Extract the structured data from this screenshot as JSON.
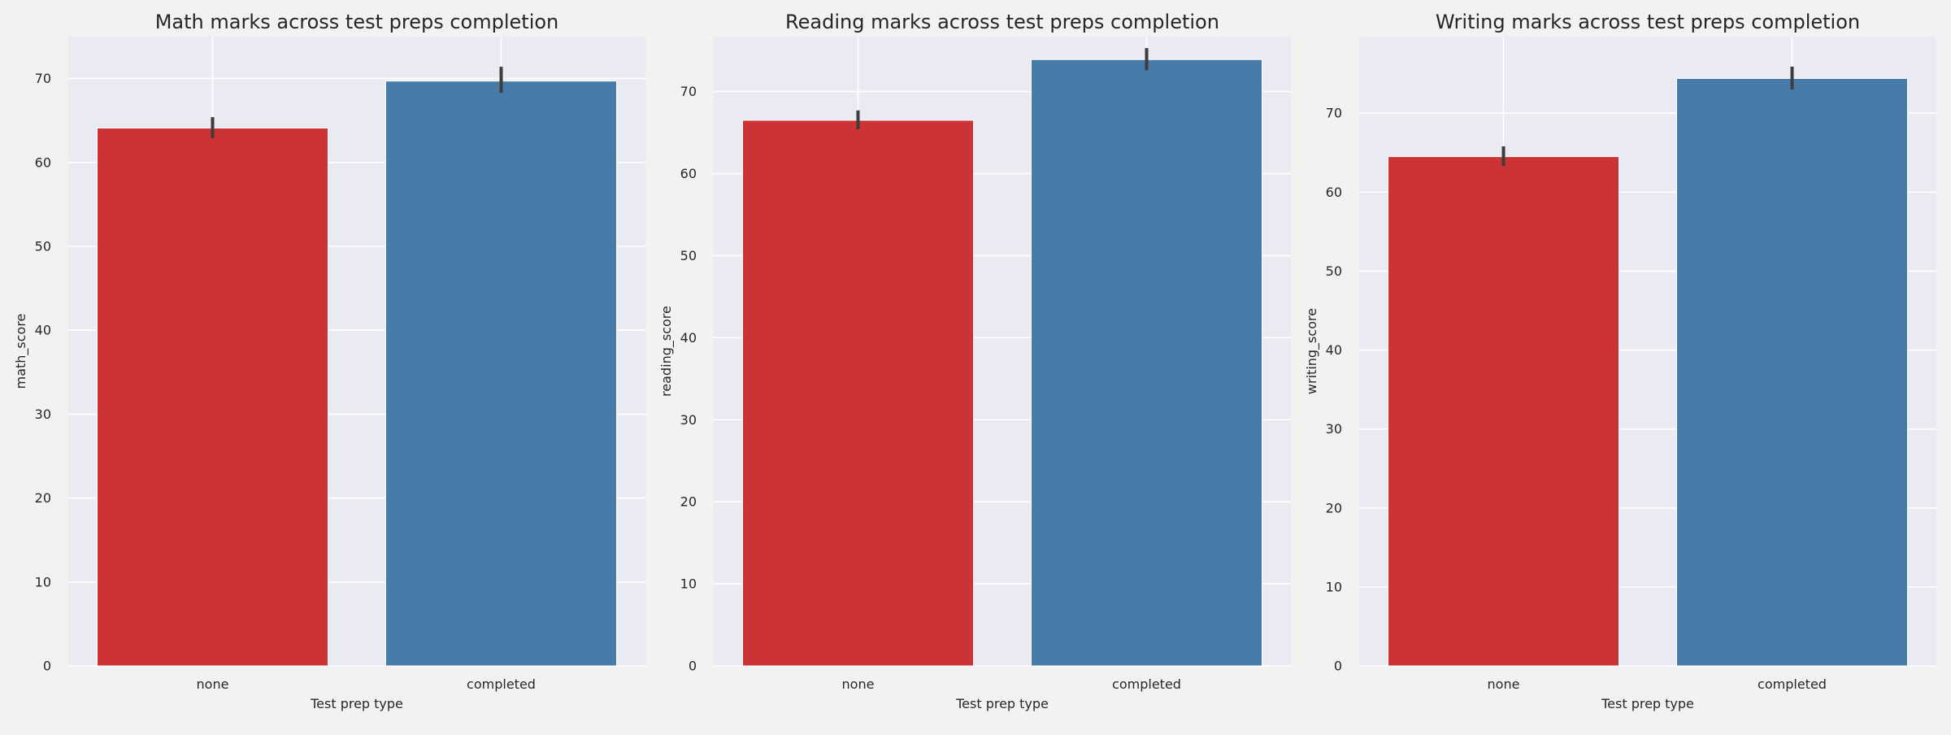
{
  "chart_data": [
    {
      "type": "bar",
      "title": "Math marks across test preps completion",
      "xlabel": "Test prep type",
      "ylabel": "math_score",
      "categories": [
        "none",
        "completed"
      ],
      "values": [
        64.1,
        69.7
      ],
      "error_low": [
        62.9,
        68.3
      ],
      "error_high": [
        65.4,
        71.4
      ],
      "ylim": [
        0,
        75
      ],
      "yticks": [
        0,
        10,
        20,
        30,
        40,
        50,
        60,
        70
      ],
      "colors": [
        "#cb3335",
        "#477ca8"
      ],
      "grid": true
    },
    {
      "type": "bar",
      "title": "Reading marks across test preps completion",
      "xlabel": "Test prep type",
      "ylabel": "reading_score",
      "categories": [
        "none",
        "completed"
      ],
      "values": [
        66.5,
        73.9
      ],
      "error_low": [
        65.4,
        72.6
      ],
      "error_high": [
        67.7,
        75.3
      ],
      "ylim": [
        0,
        76.7
      ],
      "yticks": [
        0,
        10,
        20,
        30,
        40,
        50,
        60,
        70
      ],
      "colors": [
        "#cb3335",
        "#477ca8"
      ],
      "grid": true
    },
    {
      "type": "bar",
      "title": "Writing marks across test preps completion",
      "xlabel": "Test prep type",
      "ylabel": "writing_score",
      "categories": [
        "none",
        "completed"
      ],
      "values": [
        64.5,
        74.4
      ],
      "error_low": [
        63.3,
        73.0
      ],
      "error_high": [
        65.8,
        75.9
      ],
      "ylim": [
        0,
        79.7
      ],
      "yticks": [
        0,
        10,
        20,
        30,
        40,
        50,
        60,
        70
      ],
      "colors": [
        "#cb3335",
        "#477ca8"
      ],
      "grid": true
    }
  ]
}
